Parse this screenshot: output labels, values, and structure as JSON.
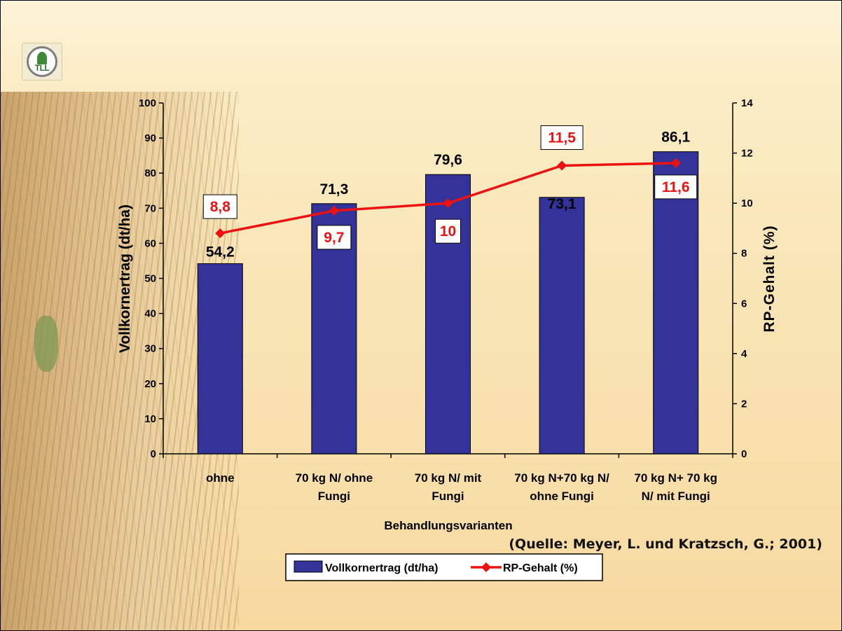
{
  "chart_data": {
    "type": "bar",
    "categories": [
      [
        "ohne"
      ],
      [
        "70 kg N/ ohne",
        "Fungi"
      ],
      [
        "70 kg N/ mit",
        "Fungi"
      ],
      [
        "70 kg N+70 kg N/",
        "ohne Fungi"
      ],
      [
        "70 kg N+ 70 kg",
        "N/ mit Fungi"
      ]
    ],
    "series": [
      {
        "name": "Vollkornertrag (dt/ha)",
        "kind": "bar",
        "axis": "left",
        "color": "#333399",
        "values": [
          54.2,
          71.3,
          79.6,
          73.1,
          86.1
        ],
        "labels": [
          "54,2",
          "71,3",
          "79,6",
          "73,1",
          "86,1"
        ]
      },
      {
        "name": "RP-Gehalt (%)",
        "kind": "line",
        "axis": "right",
        "color": "#ee1111",
        "values": [
          8.8,
          9.7,
          10,
          11.5,
          11.6
        ],
        "labels": [
          "8,8",
          "9,7",
          "10",
          "11,5",
          "11,6"
        ]
      }
    ],
    "xlabel": "Behandlungsvarianten",
    "ylabel": "Vollkornertrag (dt/ha)",
    "y2label": "RP-Gehalt (%)",
    "ylim": [
      0,
      100
    ],
    "yticks": [
      0,
      10,
      20,
      30,
      40,
      50,
      60,
      70,
      80,
      90,
      100
    ],
    "y2lim": [
      0,
      14
    ],
    "y2ticks": [
      0,
      2,
      4,
      6,
      8,
      10,
      12,
      14
    ],
    "grid": false,
    "legend_position": "bottom"
  },
  "source_note": "(Quelle: Meyer, L. und Kratzsch, G.; 2001)",
  "logo_text": "TLL"
}
